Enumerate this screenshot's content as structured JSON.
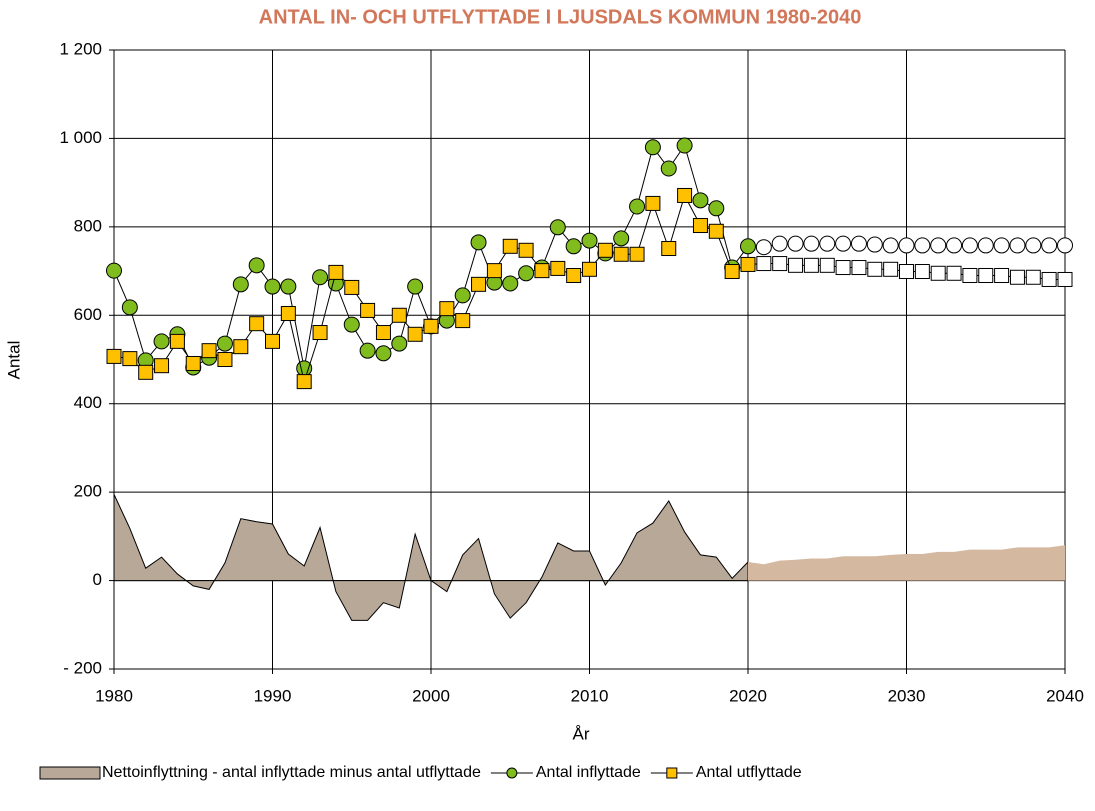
{
  "chart_data": {
    "type": "line",
    "title": "ANTAL IN- OCH UTFLYTTADE I LJUSDALS KOMMUN 1980-2040",
    "title_color": "#d2775a",
    "x_label": "År",
    "y_label": "Antal",
    "x": [
      1980,
      1981,
      1982,
      1983,
      1984,
      1985,
      1986,
      1987,
      1988,
      1989,
      1990,
      1991,
      1992,
      1993,
      1994,
      1995,
      1996,
      1997,
      1998,
      1999,
      2000,
      2001,
      2002,
      2003,
      2004,
      2005,
      2006,
      2007,
      2008,
      2009,
      2010,
      2011,
      2012,
      2013,
      2014,
      2015,
      2016,
      2017,
      2018,
      2019,
      2020,
      2021,
      2022,
      2023,
      2024,
      2025,
      2026,
      2027,
      2028,
      2029,
      2030,
      2031,
      2032,
      2033,
      2034,
      2035,
      2036,
      2037,
      2038,
      2039,
      2040
    ],
    "xlim": [
      1980,
      2040
    ],
    "xticks": [
      1980,
      1990,
      2000,
      2010,
      2020,
      2030,
      2040
    ],
    "ylim": [
      -200,
      1200
    ],
    "yticks": [
      {
        "value": -200,
        "label": "- 200"
      },
      0,
      200,
      400,
      600,
      800,
      {
        "value": 1000,
        "label": "1 000"
      },
      {
        "value": 1200,
        "label": "1 200"
      }
    ],
    "grid": true,
    "forecast_from": 2020,
    "legend": "bottom",
    "series": [
      {
        "name": "Nettoinflyttning - antal inflyttade minus antal utflyttade",
        "kind": "area",
        "color": "#b8a898",
        "forecast_color": "#d5b8a0",
        "values": [
          195,
          118,
          28,
          53,
          15,
          -12,
          -20,
          40,
          140,
          133,
          128,
          60,
          33,
          120,
          -25,
          -90,
          -90,
          -50,
          -62,
          105,
          0,
          -25,
          58,
          95,
          -30,
          -85,
          -50,
          8,
          85,
          67,
          67,
          -10,
          40,
          108,
          130,
          180,
          110,
          58,
          53,
          5,
          42,
          37,
          45,
          47,
          50,
          50,
          55,
          55,
          55,
          58,
          60,
          60,
          65,
          65,
          70,
          70,
          70,
          75,
          75,
          75,
          80
        ]
      },
      {
        "name": "Antal inflyttade",
        "kind": "line",
        "marker": "circle",
        "color": "#80bc1e",
        "forecast_color": "#ffffff",
        "values": [
          701,
          618,
          498,
          541,
          557,
          482,
          504,
          536,
          670,
          713,
          665,
          665,
          480,
          686,
          672,
          579,
          520,
          514,
          536,
          665,
          575,
          588,
          645,
          765,
          674,
          672,
          695,
          708,
          799,
          756,
          769,
          740,
          774,
          846,
          980,
          932,
          984,
          860,
          842,
          708,
          756,
          754,
          762,
          762,
          762,
          762,
          762,
          762,
          760,
          758,
          758,
          758,
          758,
          758,
          758,
          758,
          758,
          758,
          758,
          758,
          758
        ]
      },
      {
        "name": "Antal utflyttade",
        "kind": "line",
        "marker": "square",
        "color": "#ffc000",
        "forecast_color": "#ffffff",
        "values": [
          507,
          502,
          471,
          486,
          541,
          491,
          520,
          500,
          529,
          581,
          541,
          604,
          450,
          561,
          697,
          663,
          611,
          561,
          600,
          557,
          575,
          615,
          588,
          670,
          701,
          756,
          747,
          701,
          706,
          690,
          704,
          747,
          738,
          738,
          853,
          751,
          871,
          803,
          790,
          699,
          715,
          717,
          717,
          713,
          713,
          713,
          708,
          708,
          704,
          704,
          699,
          699,
          695,
          695,
          690,
          690,
          690,
          686,
          686,
          681,
          681
        ]
      }
    ]
  }
}
